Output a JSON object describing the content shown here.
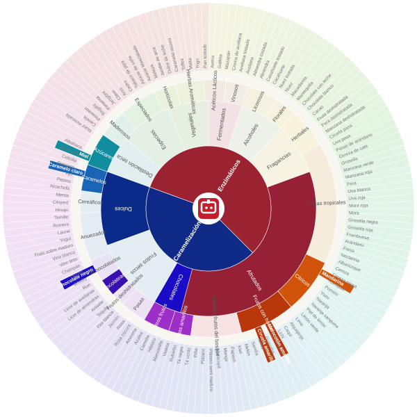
{
  "center": {
    "logo_icon": "brand-logo-icon"
  },
  "colors": {
    "enz": "#9b2231",
    "car": "#0e2a86",
    "dark_red": "#962036",
    "navy": "#0b2b8a",
    "teal": "#118da0",
    "blue": "#1a64b8",
    "indigo": "#1a0cc6",
    "violet": "#3a0fb0",
    "purple": "#9b2fc7",
    "orange": "#d2540b",
    "rust": "#b8380c",
    "outer_bg": "#f3efe6"
  },
  "inner": [
    {
      "label": "Enzimáticos",
      "start": -70,
      "end": 135,
      "color": "#9b2231"
    },
    {
      "label": "Caramelización",
      "start": 135,
      "end": 290,
      "color": "#0e2a86"
    }
  ],
  "middle": [
    {
      "label": "Afrutados",
      "start": 70,
      "end": 225,
      "color": "#962036",
      "text": "#ffffff"
    },
    {
      "label": "Fermentados",
      "start": 0,
      "end": 18,
      "color": "#f2e2e6",
      "text": "#555555"
    },
    {
      "label": "Vegetales",
      "start": -22,
      "end": 0,
      "color": "#e7f0e0",
      "text": "#555555"
    },
    {
      "label": "Alcoholes",
      "start": 18,
      "end": 42,
      "color": "#eef0ea",
      "text": "#555555"
    },
    {
      "label": "Fragancias",
      "start": 42,
      "end": 70,
      "color": "#f6f3e3",
      "text": "#555555"
    },
    {
      "label": "Especias",
      "start": -50,
      "end": -22,
      "color": "#e4f0e4",
      "text": "#555555"
    },
    {
      "label": "Destilación seca",
      "start": -70,
      "end": -50,
      "color": "#e2eef0",
      "text": "#555555"
    },
    {
      "label": "Dulces",
      "start": -110,
      "end": -70,
      "color": "#0b2b8a",
      "text": "#ffffff"
    },
    {
      "label": "Frutos secos",
      "start": -150,
      "end": -110,
      "color": "#e4edf2",
      "text": "#555555"
    },
    {
      "label": "Chocolates",
      "start": -165,
      "end": -150,
      "color": "#1a0cc6",
      "text": "#ffffff"
    }
  ],
  "middle_text": {
    "Afrutados": "Afrutados",
    "Fermentados": "Fermentados",
    "Vegetales": "Vegetales",
    "Alcoholes": "Alcoholes",
    "Fragancias": "Fragancias",
    "Especias": "Especias",
    "Destilacion": "Destilación seca",
    "Dulces": "Dulces",
    "Frutos": "Frutos secos",
    "Chocolates": "Chocolates"
  },
  "outer": [
    {
      "label": "Cítricos",
      "start": 115,
      "end": 140,
      "color": "#d2540b",
      "text": "#ffffff"
    },
    {
      "label": "Frutos con hueso",
      "start": 140,
      "end": 165,
      "color": "#b8380c",
      "text": "#ffffff"
    },
    {
      "label": "Bayas y frutos del bosque",
      "start": 165,
      "end": 188,
      "color": "#f7e2e4",
      "text": "#555555"
    },
    {
      "label": "Frutos amarillos",
      "start": 188,
      "end": 198,
      "color": "#9b2fc7",
      "text": "#ffffff"
    },
    {
      "label": "Otros frutos",
      "start": 198,
      "end": 210,
      "color": "#9b2fc7",
      "text": "#ffffff"
    },
    {
      "label": "Pasas",
      "start": 210,
      "end": 222,
      "color": "#ece2f3",
      "text": "#555555"
    },
    {
      "label": "Frutos deshidratados",
      "start": 222,
      "end": 228,
      "color": "#ece2f3",
      "text": "#555555"
    },
    {
      "label": "Chocolateados",
      "start": 228,
      "end": 236,
      "color": "#3a0fb0",
      "text": "#ffffff"
    },
    {
      "label": "Achocolatados",
      "start": 236,
      "end": 246,
      "color": "#e8e2f4",
      "text": "#555555"
    },
    {
      "label": "Anuezados",
      "start": 246,
      "end": 268,
      "color": "#e4ebf2",
      "text": "#555555"
    },
    {
      "label": "Cereáficos",
      "start": 268,
      "end": 278,
      "color": "#e3edf2",
      "text": "#555555"
    },
    {
      "label": "Caramelos",
      "start": 278,
      "end": 290,
      "color": "#1a64b8",
      "text": "#ffffff"
    },
    {
      "label": "Azúcares",
      "start": 290,
      "end": 305,
      "color": "#118da0",
      "text": "#ffffff"
    },
    {
      "label": "Maderosos",
      "start": 305,
      "end": 318,
      "color": "#e2f0ec",
      "text": "#555555"
    },
    {
      "label": "Especiados",
      "start": 318,
      "end": 335,
      "color": "#e4f2e2",
      "text": "#555555"
    },
    {
      "label": "Hortícolas",
      "start": 335,
      "end": 345,
      "color": "#eaf2de",
      "text": "#555555"
    },
    {
      "label": "Hierbas Aromáticas",
      "start": 345,
      "end": 358,
      "color": "#eef2dc",
      "text": "#555555"
    },
    {
      "label": "Acéticos Lácticos",
      "start": 358,
      "end": 368,
      "color": "#f2eae2",
      "text": "#555555"
    },
    {
      "label": "Vinosos",
      "start": 368,
      "end": 378,
      "color": "#f2ede4",
      "text": "#555555"
    },
    {
      "label": "Licorosos",
      "start": 378,
      "end": 392,
      "color": "#f4f1e0",
      "text": "#555555"
    },
    {
      "label": "Florales",
      "start": 392,
      "end": 402,
      "color": "#f6f2de",
      "text": "#555555"
    },
    {
      "label": "Herbales",
      "start": 402,
      "end": 420,
      "color": "#f6f2dc",
      "text": "#555555"
    },
    {
      "label": "Frutas tropicales",
      "start": 420,
      "end": 475,
      "color": "#f6ecdc",
      "text": "#555555"
    }
  ],
  "outer_text": {
    "Citricos": "Cítricos",
    "Frutos_con_hueso": "Frutos con hueso",
    "Bayas": "Bayas y frutos del bosque",
    "Frutos_amarillos": "Frutos amarillos",
    "Otros_frutos": "Otros frutos",
    "Pasas": "Pasas",
    "Frutos_desh": "Frutos deshidratados",
    "Chocolateados": "Chocolateados",
    "Achocolatados": "Achocolatados",
    "Anuezados": "Anuezados",
    "Cereaficos": "Cereáficos",
    "Caramelos": "Caramelos",
    "Azucares": "Azúcares",
    "Maderosos": "Maderosos",
    "Especiados": "Especiados",
    "Horticolas": "Hortícolas",
    "Hierbas": "Hierbas Aromáticas",
    "Aceticos": "Acéticos Lácticos",
    "Vinosos": "Vinosos",
    "Licorosos": "Licorosos",
    "Florales": "Florales",
    "Herbales": "Herbales",
    "Tropicales": "Frutas tropicales"
  },
  "highlights": [
    {
      "label": "Miel",
      "start": 291.5,
      "end": 294.5,
      "color": "#118da0"
    },
    {
      "label": "Caramelo claro",
      "start": 284,
      "end": 287,
      "color": "#1a64b8"
    },
    {
      "label": "Chocolate negro",
      "start": 240.5,
      "end": 244,
      "color": "#1a0cc6"
    },
    {
      "label": "Mandarina",
      "start": 118,
      "end": 121,
      "color": "#d2540b"
    },
    {
      "label": "Melocotón amarillo",
      "start": 151,
      "end": 154,
      "color": "#b8380c"
    },
    {
      "label": "Ciruela amarilla",
      "start": 156,
      "end": 159,
      "color": "#b8380c"
    }
  ],
  "highlight_text": {
    "Miel": "Miel",
    "Caramelo_claro": "Caramelo claro",
    "Chocolate_negro": "Chocolate negro",
    "Mandarina": "Mandarina",
    "Melocoton": "Melocotón amarillo",
    "Ciruela": "Ciruela amarilla"
  },
  "terms": [
    "Nuez moscada",
    "Canela",
    "Pimentón",
    "Regaliz",
    "Pimienta",
    "Jengibre",
    "Clavo",
    "Anís",
    "Cedro",
    "Tabaco de pipa",
    "Azúcar de caña",
    "Azúcar Mascabado",
    "Melaza",
    "Jarabe de arce",
    "Dulce de leche",
    "Caramelo oscuro",
    "Toffee",
    "Malta",
    "Trigo",
    "Pan tostado",
    "Avena",
    "Galleta",
    "Mazapán",
    "Crema de avellana",
    "Avellana tostada",
    "Avellana",
    "Almendra tostada",
    "Almendra",
    "Cacahuete tostado",
    "Cacahuete",
    "Nuez tostada",
    "Nuez",
    "Macadamia",
    "Mantequilla",
    "Chocolate con leche",
    "Chocolate blanco",
    "Cacao",
    "Fruta deshidratada",
    "Pera deshidratada",
    "Manzana deshidratada",
    "Ciruela pasa",
    "Uva pasa",
    "Pasas de arándano",
    "Cereza de café",
    "Grosella",
    "Manzana verde",
    "Manzana roja",
    "Pera",
    "Uva blanca",
    "Uva roja",
    "Mora roja",
    "Mora",
    "Grosella negra",
    "Grosella roja",
    "Frambuesa",
    "Arándano",
    "Fresa",
    "Nectarina",
    "Albaricoque",
    "Cereza",
    "Cereza negra",
    "Kumquat",
    "Pomelo",
    "Yuzu",
    "Naranja",
    "Naranja sanguina",
    "Piel de limón",
    "Limón verde",
    "Lima",
    "Alquejenje",
    "Caqui",
    "Lichi",
    "Carambola",
    "Guayaba",
    "Coco",
    "Sandía",
    "Melón",
    "Kiwi",
    "Papaya",
    "Mango",
    "Maracuyá",
    "Plátano semi maduro",
    "Plátano",
    "Piña",
    "Té verde",
    "Té negro",
    "Rubarbo",
    "Violeta",
    "Manzanilla",
    "Hibisco",
    "Camelia",
    "Azalea",
    "Azucena",
    "Rosa oscura",
    "Rosa",
    "Jazmín",
    "Flor blanca",
    "Tequila",
    "Anisete",
    "Licor de almendras",
    "Licor de avellanas",
    "Ron",
    "Whisky",
    "Oporto",
    "Champán",
    "Vino tinto",
    "Vino blanco",
    "Fruto sobre maduro",
    "Yogur",
    "Laurel",
    "Romero",
    "Tomillo",
    "Hinojo",
    "Césped",
    "Menta",
    "Alcachofa",
    "Pepino",
    "Ajo",
    "Pimiento",
    "Cebolla",
    "Zanahoria",
    "Albahaca"
  ]
}
